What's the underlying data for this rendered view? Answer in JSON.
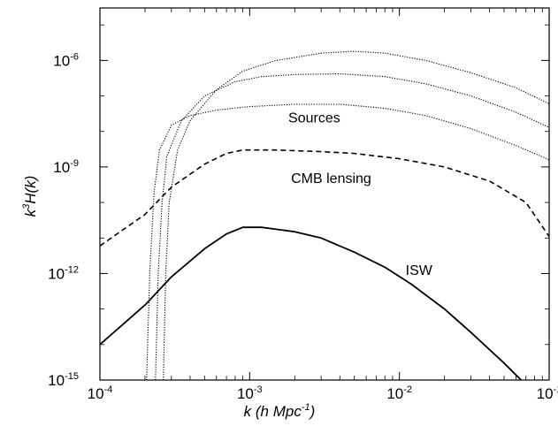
{
  "chart_data": {
    "type": "line",
    "title": "",
    "xlabel": {
      "main": "k (h Mpc",
      "sup": "-1",
      "tail": ")"
    },
    "ylabel": {
      "a": "k",
      "sup": "3",
      "b": "H(k)"
    },
    "xscale": "log",
    "yscale": "log",
    "xlim": [
      0.0001,
      0.1
    ],
    "ylim": [
      1e-15,
      3e-05
    ],
    "grid": false,
    "legend": "none",
    "x_ticks": [
      {
        "value": 0.0001,
        "base": "10",
        "exp": "-4"
      },
      {
        "value": 0.001,
        "base": "10",
        "exp": "-3"
      },
      {
        "value": 0.01,
        "base": "10",
        "exp": "-2"
      },
      {
        "value": 0.1,
        "base": "10",
        "exp": "-1"
      }
    ],
    "y_ticks": [
      {
        "value": 1e-15,
        "base": "10",
        "exp": "-15"
      },
      {
        "value": 1e-12,
        "base": "10",
        "exp": "-12"
      },
      {
        "value": 1e-09,
        "base": "10",
        "exp": "-9"
      },
      {
        "value": 1e-06,
        "base": "10",
        "exp": "-6"
      }
    ],
    "annotations": [
      {
        "text": "Sources",
        "x": 0.0027,
        "y": 2.5e-08
      },
      {
        "text": "CMB lensing",
        "x": 0.0035,
        "y": 5e-10
      },
      {
        "text": "ISW",
        "x": 0.0135,
        "y": 1.3e-12
      }
    ],
    "series": [
      {
        "style": "solid",
        "points": [
          [
            0.0001,
            1e-14
          ],
          [
            0.0002,
            1.3e-13
          ],
          [
            0.0003,
            8e-13
          ],
          [
            0.0005,
            5e-12
          ],
          [
            0.0007,
            1.3e-11
          ],
          [
            0.0009,
            2e-11
          ],
          [
            0.0012,
            2e-11
          ],
          [
            0.0016,
            1.7e-11
          ],
          [
            0.002,
            1.5e-11
          ],
          [
            0.003,
            1e-11
          ],
          [
            0.005,
            4e-12
          ],
          [
            0.008,
            1.5e-12
          ],
          [
            0.012,
            5e-13
          ],
          [
            0.02,
            1e-13
          ],
          [
            0.03,
            2.2e-14
          ],
          [
            0.05,
            3e-15
          ],
          [
            0.065,
            1e-15
          ]
        ]
      },
      {
        "style": "dashed",
        "points": [
          [
            0.0001,
            6e-12
          ],
          [
            0.0002,
            4.6e-11
          ],
          [
            0.0003,
            2.7e-10
          ],
          [
            0.0005,
            1.2e-09
          ],
          [
            0.0007,
            2.4e-09
          ],
          [
            0.0009,
            3e-09
          ],
          [
            0.0015,
            3e-09
          ],
          [
            0.003,
            2.7e-09
          ],
          [
            0.005,
            2.4e-09
          ],
          [
            0.01,
            1.7e-09
          ],
          [
            0.02,
            1e-09
          ],
          [
            0.04,
            4e-10
          ],
          [
            0.07,
            1e-10
          ],
          [
            0.1,
            1.1e-11
          ]
        ]
      },
      {
        "style": "dotted",
        "points": [
          [
            0.000205,
            1e-15
          ],
          [
            0.000215,
            1e-12
          ],
          [
            0.00023,
            2e-10
          ],
          [
            0.00025,
            3e-09
          ],
          [
            0.0003,
            1.5e-08
          ],
          [
            0.0004,
            2.8e-08
          ],
          [
            0.0006,
            4e-08
          ],
          [
            0.001,
            5e-08
          ],
          [
            0.002,
            5.8e-08
          ],
          [
            0.004,
            5.8e-08
          ],
          [
            0.008,
            4.5e-08
          ],
          [
            0.015,
            2.8e-08
          ],
          [
            0.03,
            1.2e-08
          ],
          [
            0.06,
            4e-09
          ],
          [
            0.1,
            1.6e-09
          ]
        ]
      },
      {
        "style": "dotted",
        "points": [
          [
            0.000235,
            1e-15
          ],
          [
            0.000245,
            1e-12
          ],
          [
            0.00026,
            1e-10
          ],
          [
            0.00028,
            2e-09
          ],
          [
            0.00035,
            2e-08
          ],
          [
            0.0005,
            1e-07
          ],
          [
            0.0008,
            2.5e-07
          ],
          [
            0.0012,
            3.5e-07
          ],
          [
            0.002,
            4e-07
          ],
          [
            0.004,
            4.2e-07
          ],
          [
            0.008,
            3.5e-07
          ],
          [
            0.015,
            2.2e-07
          ],
          [
            0.03,
            1e-07
          ],
          [
            0.06,
            3.5e-08
          ],
          [
            0.1,
            1.3e-08
          ]
        ]
      },
      {
        "style": "dotted",
        "points": [
          [
            0.000265,
            1e-15
          ],
          [
            0.000275,
            1e-12
          ],
          [
            0.00029,
            1e-10
          ],
          [
            0.00033,
            3e-09
          ],
          [
            0.0004,
            2e-08
          ],
          [
            0.0006,
            1.5e-07
          ],
          [
            0.0009,
            5e-07
          ],
          [
            0.0015,
            1e-06
          ],
          [
            0.003,
            1.6e-06
          ],
          [
            0.005,
            1.8e-06
          ],
          [
            0.008,
            1.6e-06
          ],
          [
            0.015,
            1e-06
          ],
          [
            0.03,
            4.5e-07
          ],
          [
            0.06,
            1.7e-07
          ],
          [
            0.1,
            6e-08
          ]
        ]
      }
    ]
  }
}
